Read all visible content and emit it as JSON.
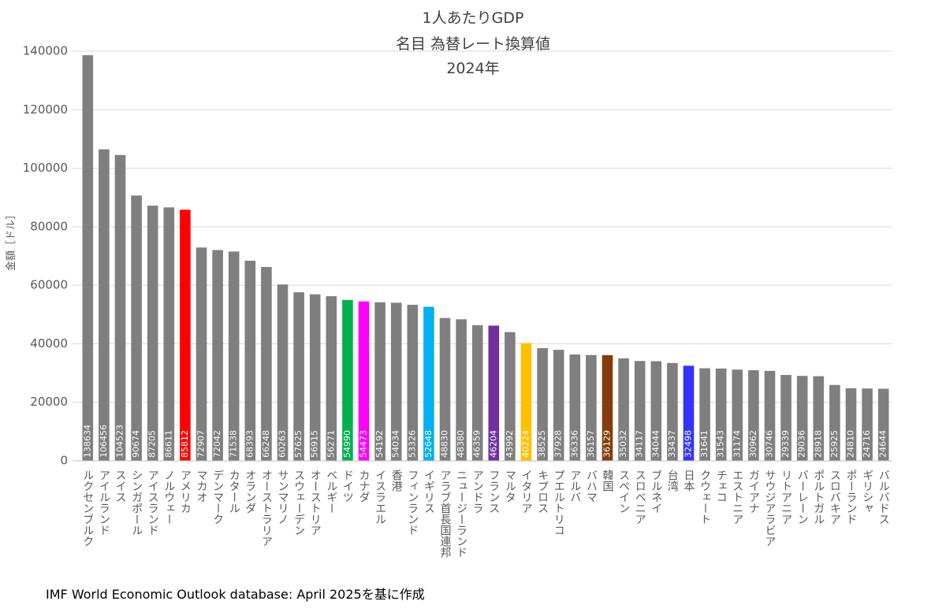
{
  "chart_data": {
    "type": "bar",
    "title": [
      "1人あたりGDP",
      "名目 為替レート換算値",
      "2024年"
    ],
    "y_label": "金額［ドル］",
    "source": "IMF World Economic Outlook database: April 2025を基に作成",
    "categories": [
      "ルクセンブルク",
      "アイルランド",
      "スイス",
      "シンガポール",
      "アイスランド",
      "ノルウェー",
      "アメリカ",
      "マカオ",
      "デンマーク",
      "カタール",
      "オランダ",
      "オーストラリア",
      "サンマリノ",
      "スウェーデン",
      "オーストリア",
      "ベルギー",
      "ドイツ",
      "カナダ",
      "イスラエル",
      "香港",
      "フィンランド",
      "イギリス",
      "アラブ首長国連邦",
      "ニュージーランド",
      "アンドラ",
      "フランス",
      "マルタ",
      "イタリア",
      "キプロス",
      "プエルトリコ",
      "アルバ",
      "バハマ",
      "韓国",
      "スペイン",
      "スロベニア",
      "ブルネイ",
      "台湾",
      "日本",
      "クウェート",
      "チェコ",
      "エストニア",
      "ガイアナ",
      "サウジアラビア",
      "リトアニア",
      "バーレーン",
      "ポルトガル",
      "スロバキア",
      "ポーランド",
      "ギリシャ",
      "バルバドス"
    ],
    "values": [
      138634,
      106456,
      104523,
      90674,
      87205,
      86611,
      85812,
      72907,
      72042,
      71538,
      68393,
      66248,
      60263,
      57625,
      56915,
      56271,
      54990,
      54473,
      54192,
      54034,
      53326,
      52648,
      48830,
      48380,
      46359,
      46204,
      43992,
      40224,
      38525,
      37928,
      36336,
      36157,
      36129,
      35032,
      34117,
      34044,
      33437,
      32498,
      31641,
      31543,
      31174,
      30962,
      30746,
      29339,
      29036,
      28918,
      25925,
      24810,
      24716,
      24644
    ],
    "colors": [
      "#7f7f7f",
      "#7f7f7f",
      "#7f7f7f",
      "#7f7f7f",
      "#7f7f7f",
      "#7f7f7f",
      "#ff0000",
      "#7f7f7f",
      "#7f7f7f",
      "#7f7f7f",
      "#7f7f7f",
      "#7f7f7f",
      "#7f7f7f",
      "#7f7f7f",
      "#7f7f7f",
      "#7f7f7f",
      "#00b050",
      "#ff00ff",
      "#7f7f7f",
      "#7f7f7f",
      "#7f7f7f",
      "#00b0f0",
      "#7f7f7f",
      "#7f7f7f",
      "#7f7f7f",
      "#7030a0",
      "#7f7f7f",
      "#ffc000",
      "#7f7f7f",
      "#7f7f7f",
      "#7f7f7f",
      "#7f7f7f",
      "#843c0c",
      "#7f7f7f",
      "#7f7f7f",
      "#7f7f7f",
      "#7f7f7f",
      "#3333ff",
      "#7f7f7f",
      "#7f7f7f",
      "#7f7f7f",
      "#7f7f7f",
      "#7f7f7f",
      "#7f7f7f",
      "#7f7f7f",
      "#7f7f7f",
      "#7f7f7f",
      "#7f7f7f",
      "#7f7f7f",
      "#7f7f7f"
    ],
    "ylim": [
      0,
      140000
    ],
    "yticks": [
      0,
      20000,
      40000,
      60000,
      80000,
      100000,
      120000,
      140000
    ],
    "grid": true
  }
}
